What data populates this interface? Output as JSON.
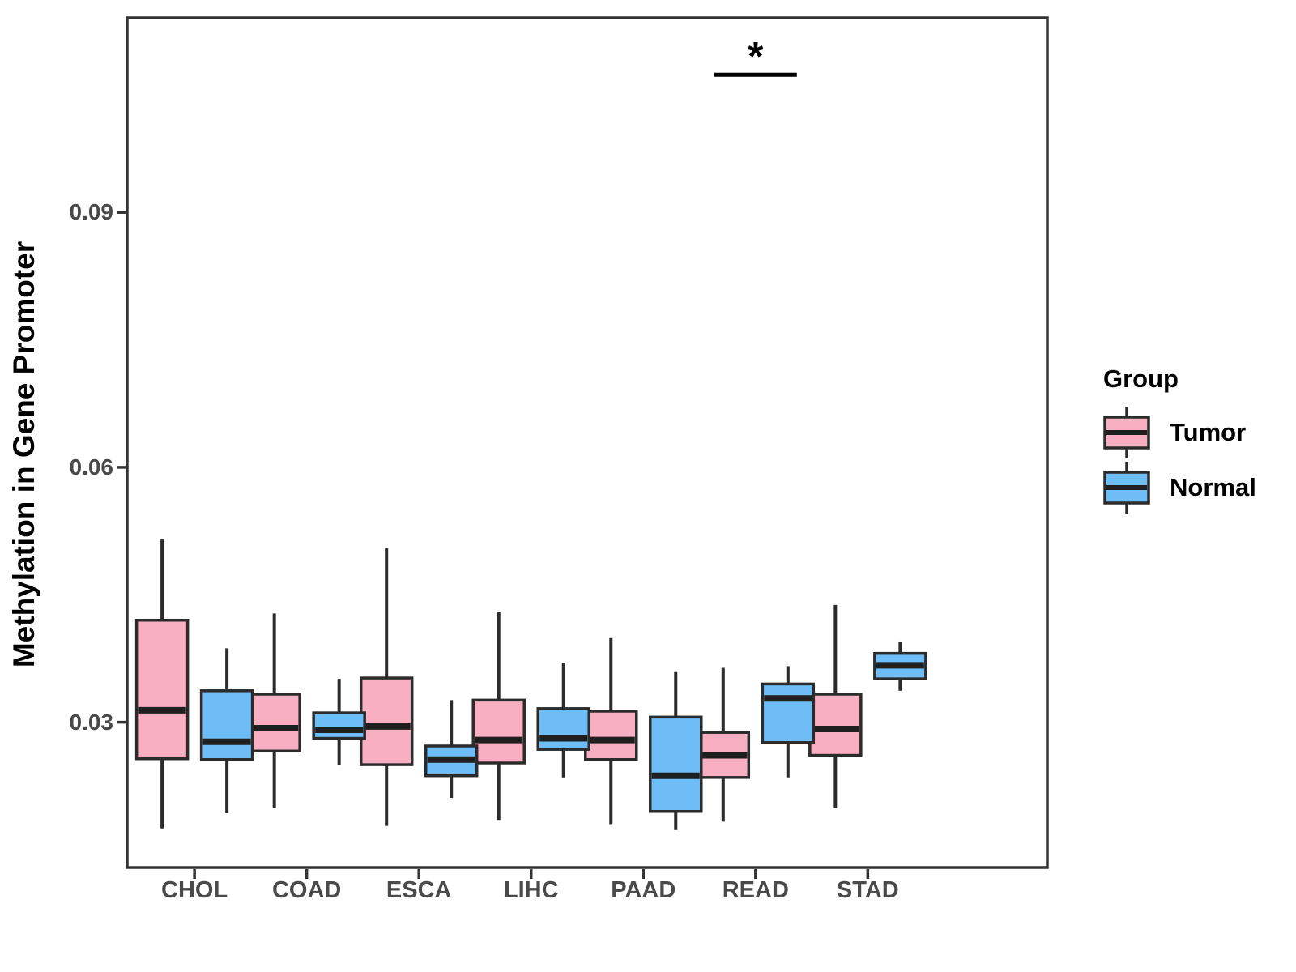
{
  "legend": {
    "title": "Group",
    "entries": [
      {
        "label": "Tumor",
        "color": "#F9AFC2"
      },
      {
        "label": "Normal",
        "color": "#6FBDF6"
      }
    ]
  },
  "chart_data": {
    "type": "boxplot",
    "title": "",
    "xlabel": "",
    "ylabel": "Methylation in Gene Promoter",
    "categories": [
      "CHOL",
      "COAD",
      "ESCA",
      "LIHC",
      "PAAD",
      "READ",
      "STAD"
    ],
    "yticks": [
      0.03,
      0.06,
      0.09
    ],
    "ytick_labels": [
      "0.03",
      "0.06",
      "0.09"
    ],
    "ylim": [
      0.0129,
      0.1129
    ],
    "grid": false,
    "legend_position": "right",
    "series": [
      {
        "name": "Tumor",
        "fill": "#F9AFC2",
        "boxes": [
          {
            "category": "CHOL",
            "whisker_low": 0.0175,
            "q1": 0.0257,
            "median": 0.0314,
            "q3": 0.042,
            "whisker_high": 0.0515
          },
          {
            "category": "COAD",
            "whisker_low": 0.0199,
            "q1": 0.0266,
            "median": 0.0293,
            "q3": 0.0333,
            "whisker_high": 0.0428
          },
          {
            "category": "ESCA",
            "whisker_low": 0.0178,
            "q1": 0.025,
            "median": 0.0295,
            "q3": 0.0352,
            "whisker_high": 0.0505
          },
          {
            "category": "LIHC",
            "whisker_low": 0.0185,
            "q1": 0.0252,
            "median": 0.0279,
            "q3": 0.0326,
            "whisker_high": 0.043
          },
          {
            "category": "PAAD",
            "whisker_low": 0.018,
            "q1": 0.0256,
            "median": 0.0279,
            "q3": 0.0313,
            "whisker_high": 0.0399
          },
          {
            "category": "READ",
            "whisker_low": 0.0183,
            "q1": 0.0235,
            "median": 0.0261,
            "q3": 0.0288,
            "whisker_high": 0.0364
          },
          {
            "category": "STAD",
            "whisker_low": 0.0199,
            "q1": 0.0261,
            "median": 0.0292,
            "q3": 0.0333,
            "whisker_high": 0.0438
          }
        ]
      },
      {
        "name": "Normal",
        "fill": "#6FBDF6",
        "boxes": [
          {
            "category": "CHOL",
            "whisker_low": 0.0193,
            "q1": 0.0256,
            "median": 0.0277,
            "q3": 0.0337,
            "whisker_high": 0.0387
          },
          {
            "category": "COAD",
            "whisker_low": 0.025,
            "q1": 0.0281,
            "median": 0.0291,
            "q3": 0.0311,
            "whisker_high": 0.0351
          },
          {
            "category": "ESCA",
            "whisker_low": 0.0211,
            "q1": 0.0237,
            "median": 0.0256,
            "q3": 0.0272,
            "whisker_high": 0.0326
          },
          {
            "category": "LIHC",
            "whisker_low": 0.0235,
            "q1": 0.0268,
            "median": 0.0281,
            "q3": 0.0316,
            "whisker_high": 0.037
          },
          {
            "category": "PAAD",
            "whisker_low": 0.0173,
            "q1": 0.0195,
            "median": 0.0237,
            "q3": 0.0306,
            "whisker_high": 0.0359
          },
          {
            "category": "READ",
            "whisker_low": 0.0235,
            "q1": 0.0276,
            "median": 0.0328,
            "q3": 0.0345,
            "whisker_high": 0.0366
          },
          {
            "category": "STAD",
            "whisker_low": 0.0337,
            "q1": 0.0351,
            "median": 0.0367,
            "q3": 0.0381,
            "whisker_high": 0.0395
          }
        ]
      }
    ],
    "annotation": {
      "category": "READ",
      "label": "*",
      "bar_y": 0.1062
    },
    "colors": {
      "box_border": "#2B2B2B",
      "median_line": "#1F1F1F",
      "whisker": "#2B2B2B",
      "panel_border": "#333333",
      "tick_label": "#4A4A4A",
      "axis_title": "#000000",
      "annotation": "#000000",
      "background": "#FFFFFF"
    }
  }
}
